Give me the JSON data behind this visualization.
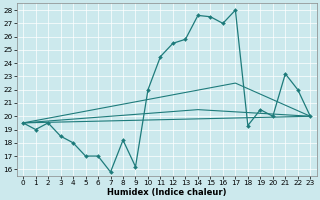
{
  "title": "",
  "xlabel": "Humidex (Indice chaleur)",
  "ylabel": "",
  "background_color": "#cce9ed",
  "line_color": "#1e7b7b",
  "xlim": [
    -0.5,
    23.5
  ],
  "ylim": [
    15.5,
    28.5
  ],
  "yticks": [
    16,
    17,
    18,
    19,
    20,
    21,
    22,
    23,
    24,
    25,
    26,
    27,
    28
  ],
  "xticks": [
    0,
    1,
    2,
    3,
    4,
    5,
    6,
    7,
    8,
    9,
    10,
    11,
    12,
    13,
    14,
    15,
    16,
    17,
    18,
    19,
    20,
    21,
    22,
    23
  ],
  "series0": {
    "x": [
      0,
      1,
      2,
      3,
      4,
      5,
      6,
      7,
      8,
      9,
      10,
      11,
      12,
      13,
      14,
      15,
      16,
      17,
      18,
      19,
      20,
      21,
      22,
      23
    ],
    "y": [
      19.5,
      19.0,
      19.5,
      18.5,
      18.0,
      17.0,
      17.0,
      15.8,
      18.2,
      16.2,
      22.0,
      24.5,
      25.5,
      25.8,
      27.6,
      27.5,
      27.0,
      28.0,
      19.3,
      20.5,
      20.0,
      23.2,
      22.0,
      20.0
    ]
  },
  "line1": {
    "x": [
      0,
      23
    ],
    "y": [
      19.5,
      20.0
    ]
  },
  "line2": {
    "x": [
      0,
      14,
      23
    ],
    "y": [
      19.5,
      20.5,
      20.0
    ]
  },
  "line3": {
    "x": [
      0,
      17,
      23
    ],
    "y": [
      19.5,
      22.5,
      20.0
    ]
  },
  "grid_color": "#ffffff",
  "xlabel_fontsize": 6.0,
  "tick_fontsize": 5.2
}
